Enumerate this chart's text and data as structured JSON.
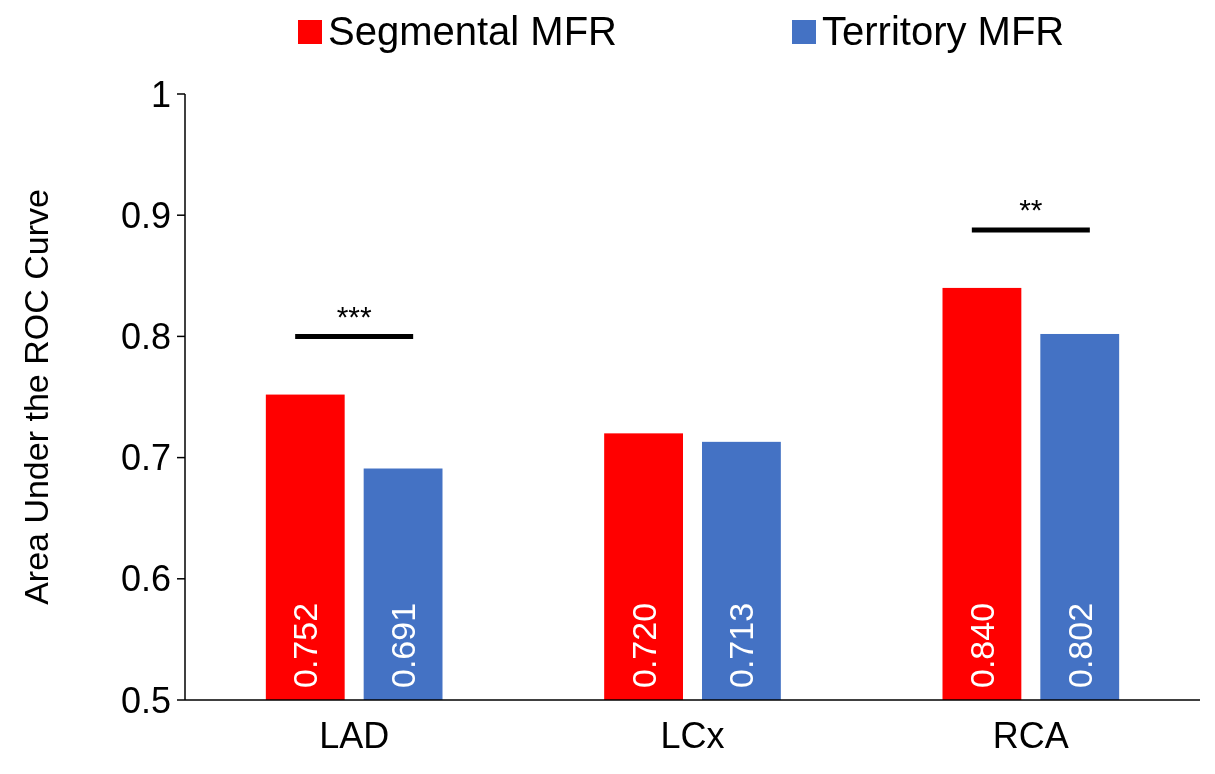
{
  "chart_data": {
    "type": "bar",
    "ylabel": "Area Under the ROC Curve",
    "categories": [
      "LAD",
      "LCx",
      "RCA"
    ],
    "series": [
      {
        "name": "Segmental MFR",
        "color": "#ff0000",
        "values": [
          0.752,
          0.72,
          0.84
        ],
        "value_labels": [
          "0.752",
          "0.720",
          "0.840"
        ]
      },
      {
        "name": "Territory MFR",
        "color": "#4472c4",
        "values": [
          0.691,
          0.713,
          0.802
        ],
        "value_labels": [
          "0.691",
          "0.713",
          "0.802"
        ]
      }
    ],
    "ylim": [
      0.5,
      1
    ],
    "yticks": [
      0.5,
      0.6,
      0.7,
      0.8,
      0.9,
      1
    ],
    "grid": false,
    "legend": "top",
    "annotations": [
      "***",
      "**"
    ]
  }
}
